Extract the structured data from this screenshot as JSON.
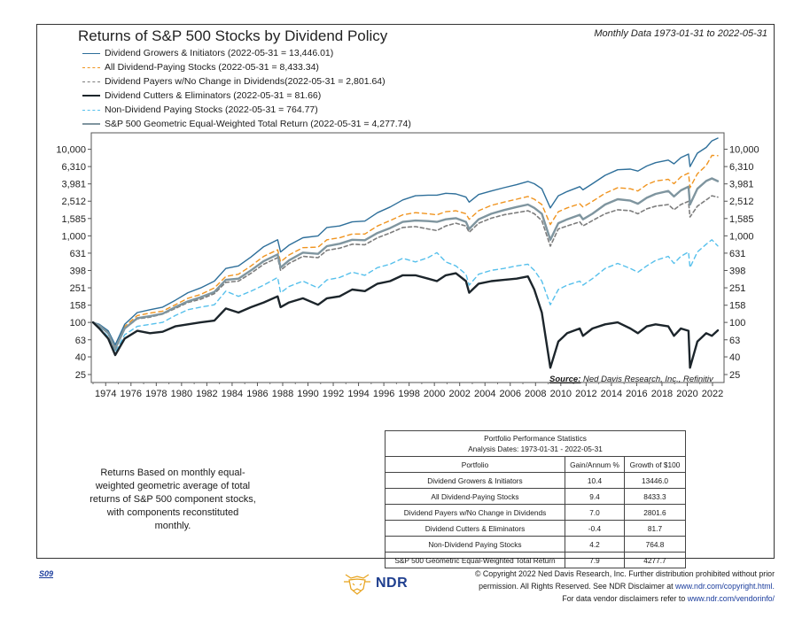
{
  "header": {
    "title": "Returns of S&P 500 Stocks by Dividend Policy",
    "subtitle": "Monthly Data 1973-01-31 to 2022-05-31"
  },
  "chart_data": {
    "type": "line",
    "title": "Returns of S&P 500 Stocks by Dividend Policy",
    "y_scale": "log",
    "ylim": [
      25,
      13446
    ],
    "xlim": [
      1973.0,
      2022.42
    ],
    "y_ticks": [
      10000,
      6310,
      3981,
      2512,
      1585,
      1000,
      631,
      398,
      251,
      158,
      100,
      63,
      40,
      25
    ],
    "y_tick_labels": [
      "10,000",
      "6,310",
      "3,981",
      "2,512",
      "1,585",
      "1,000",
      "631",
      "398",
      "251",
      "158",
      "100",
      "63",
      "40",
      "25"
    ],
    "x_tick_labels": [
      "1974",
      "1976",
      "1978",
      "1980",
      "1982",
      "1984",
      "1986",
      "1988",
      "1990",
      "1992",
      "1994",
      "1996",
      "1998",
      "2000",
      "2002",
      "2004",
      "2006",
      "2008",
      "2010",
      "2012",
      "2014",
      "2016",
      "2018",
      "2020",
      "2022"
    ],
    "legend_placement": "top-left",
    "series": [
      {
        "name": "Dividend Growers & Initiators (2022-05-31 = 13,446.01)",
        "color": "#2e6f9a",
        "dash": "solid",
        "width": 1.4,
        "x": [
          1973.0,
          1973.5,
          1974.2,
          1974.75,
          1975.5,
          1976.5,
          1977.5,
          1978.5,
          1979.5,
          1980.5,
          1981.5,
          1982.6,
          1983.5,
          1984.5,
          1985.5,
          1986.5,
          1987.6,
          1987.83,
          1988.5,
          1989.6,
          1990.8,
          1991.5,
          1992.5,
          1993.5,
          1994.5,
          1995.5,
          1996.5,
          1997.5,
          1998.5,
          1999.5,
          2000.2,
          2000.9,
          2001.7,
          2002.5,
          2002.75,
          2003.5,
          2004.5,
          2005.5,
          2006.5,
          2007.4,
          2007.9,
          2008.5,
          2009.17,
          2009.8,
          2010.5,
          2011.5,
          2011.75,
          2012.5,
          2013.5,
          2014.5,
          2015.5,
          2016.1,
          2016.8,
          2017.5,
          2018.5,
          2018.95,
          2019.5,
          2020.1,
          2020.22,
          2020.8,
          2021.5,
          2021.95,
          2022.42
        ],
        "y": [
          100,
          95,
          80,
          55,
          95,
          130,
          140,
          150,
          180,
          220,
          250,
          300,
          420,
          450,
          570,
          750,
          900,
          650,
          780,
          950,
          1000,
          1250,
          1300,
          1450,
          1480,
          1850,
          2150,
          2600,
          2900,
          2950,
          2950,
          3100,
          3050,
          2800,
          2450,
          3000,
          3300,
          3600,
          3900,
          4250,
          4000,
          3500,
          2100,
          2900,
          3250,
          3700,
          3400,
          4000,
          5000,
          5800,
          5900,
          5600,
          6400,
          7000,
          7500,
          6800,
          8000,
          8800,
          6300,
          9000,
          10500,
          12500,
          13446
        ]
      },
      {
        "name": "All Dividend-Paying Stocks (2022-05-31 = 8,433.34)",
        "color": "#f0941f",
        "dash": "5,4",
        "width": 1.4,
        "x": [
          1973.0,
          1973.5,
          1974.2,
          1974.75,
          1975.5,
          1976.5,
          1977.5,
          1978.5,
          1979.5,
          1980.5,
          1981.5,
          1982.6,
          1983.5,
          1984.5,
          1985.5,
          1986.5,
          1987.6,
          1987.83,
          1988.5,
          1989.6,
          1990.8,
          1991.5,
          1992.5,
          1993.5,
          1994.5,
          1995.5,
          1996.5,
          1997.5,
          1998.5,
          1999.5,
          2000.2,
          2000.9,
          2001.7,
          2002.5,
          2002.75,
          2003.5,
          2004.5,
          2005.5,
          2006.5,
          2007.4,
          2007.9,
          2008.5,
          2009.17,
          2009.8,
          2010.5,
          2011.5,
          2011.75,
          2012.5,
          2013.5,
          2014.5,
          2015.5,
          2016.1,
          2016.8,
          2017.5,
          2018.5,
          2018.95,
          2019.5,
          2020.1,
          2020.22,
          2020.8,
          2021.5,
          2021.95,
          2022.42
        ],
        "y": [
          100,
          93,
          78,
          52,
          90,
          120,
          128,
          135,
          160,
          190,
          210,
          250,
          340,
          360,
          450,
          580,
          690,
          500,
          600,
          730,
          740,
          900,
          950,
          1050,
          1050,
          1300,
          1500,
          1750,
          1850,
          1800,
          1750,
          1900,
          1950,
          1800,
          1550,
          1950,
          2250,
          2450,
          2650,
          2850,
          2650,
          2300,
          1350,
          1900,
          2100,
          2350,
          2150,
          2500,
          3100,
          3600,
          3500,
          3300,
          3900,
          4300,
          4500,
          4000,
          4800,
          5300,
          3600,
          5200,
          6500,
          8500,
          8433
        ]
      },
      {
        "name": "Dividend Payers w/No Change in Dividends(2022-05-31 = 2,801.64)",
        "color": "#7d7d7d",
        "dash": "4,3",
        "width": 1.6,
        "x": [
          1973.0,
          1973.5,
          1974.2,
          1974.75,
          1975.5,
          1976.5,
          1977.5,
          1978.5,
          1979.5,
          1980.5,
          1981.5,
          1982.6,
          1983.5,
          1984.5,
          1985.5,
          1986.5,
          1987.6,
          1987.83,
          1988.5,
          1989.6,
          1990.8,
          1991.5,
          1992.5,
          1993.5,
          1994.5,
          1995.5,
          1996.5,
          1997.5,
          1998.5,
          1999.5,
          2000.2,
          2000.9,
          2001.7,
          2002.5,
          2002.75,
          2003.5,
          2004.5,
          2005.5,
          2006.5,
          2007.4,
          2007.9,
          2008.5,
          2009.17,
          2009.8,
          2010.5,
          2011.5,
          2011.75,
          2012.5,
          2013.5,
          2014.5,
          2015.5,
          2016.1,
          2016.8,
          2017.5,
          2018.5,
          2018.95,
          2019.5,
          2020.1,
          2020.22,
          2020.8,
          2021.5,
          2021.95,
          2022.42
        ],
        "y": [
          100,
          92,
          75,
          48,
          85,
          110,
          115,
          125,
          145,
          170,
          185,
          215,
          290,
          300,
          370,
          470,
          560,
          400,
          480,
          580,
          560,
          680,
          720,
          800,
          790,
          950,
          1080,
          1250,
          1280,
          1200,
          1150,
          1300,
          1400,
          1300,
          1100,
          1400,
          1600,
          1750,
          1850,
          1950,
          1800,
          1500,
          760,
          1200,
          1300,
          1450,
          1300,
          1500,
          1800,
          2000,
          1950,
          1800,
          2050,
          2200,
          2300,
          2000,
          2300,
          2500,
          1650,
          2200,
          2600,
          2900,
          2801
        ]
      },
      {
        "name": "Dividend Cutters & Eliminators (2022-05-31 = 81.66)",
        "color": "#1c252b",
        "dash": "solid",
        "width": 2.4,
        "x": [
          1973.0,
          1973.5,
          1974.2,
          1974.75,
          1975.5,
          1976.5,
          1977.5,
          1978.5,
          1979.5,
          1980.5,
          1981.5,
          1982.6,
          1983.5,
          1984.5,
          1985.5,
          1986.5,
          1987.6,
          1987.83,
          1988.5,
          1989.6,
          1990.8,
          1991.5,
          1992.5,
          1993.5,
          1994.5,
          1995.5,
          1996.5,
          1997.5,
          1998.5,
          1999.5,
          2000.2,
          2000.9,
          2001.7,
          2002.5,
          2002.75,
          2003.5,
          2004.5,
          2005.5,
          2006.5,
          2007.4,
          2007.9,
          2008.5,
          2009.17,
          2009.8,
          2010.5,
          2011.5,
          2011.75,
          2012.5,
          2013.5,
          2014.5,
          2015.5,
          2016.1,
          2016.8,
          2017.5,
          2018.5,
          2018.95,
          2019.5,
          2020.1,
          2020.22,
          2020.8,
          2021.5,
          2021.95,
          2022.42
        ],
        "y": [
          100,
          85,
          65,
          42,
          65,
          80,
          75,
          78,
          90,
          95,
          100,
          105,
          145,
          130,
          150,
          170,
          200,
          150,
          170,
          190,
          160,
          190,
          200,
          240,
          230,
          280,
          300,
          350,
          350,
          320,
          300,
          350,
          370,
          300,
          220,
          280,
          300,
          310,
          320,
          340,
          240,
          130,
          30,
          60,
          75,
          85,
          70,
          85,
          95,
          100,
          85,
          75,
          90,
          95,
          90,
          70,
          85,
          80,
          30,
          60,
          75,
          70,
          81
        ]
      },
      {
        "name": "Non-Dividend Paying Stocks (2022-05-31 = 764.77)",
        "color": "#56c0ec",
        "dash": "5,4",
        "width": 1.4,
        "x": [
          1973.0,
          1973.5,
          1974.2,
          1974.75,
          1975.5,
          1976.5,
          1977.5,
          1978.5,
          1979.5,
          1980.5,
          1981.5,
          1982.6,
          1983.5,
          1984.5,
          1985.5,
          1986.5,
          1987.6,
          1987.83,
          1988.5,
          1989.6,
          1990.8,
          1991.5,
          1992.5,
          1993.5,
          1994.5,
          1995.5,
          1996.5,
          1997.5,
          1998.5,
          1999.5,
          2000.2,
          2000.9,
          2001.7,
          2002.5,
          2002.75,
          2003.5,
          2004.5,
          2005.5,
          2006.5,
          2007.4,
          2007.9,
          2008.5,
          2009.17,
          2009.8,
          2010.5,
          2011.5,
          2011.75,
          2012.5,
          2013.5,
          2014.5,
          2015.5,
          2016.1,
          2016.8,
          2017.5,
          2018.5,
          2018.95,
          2019.5,
          2020.1,
          2020.22,
          2020.8,
          2021.5,
          2021.95,
          2022.42
        ],
        "y": [
          100,
          88,
          68,
          45,
          72,
          90,
          95,
          100,
          120,
          140,
          150,
          160,
          230,
          200,
          230,
          270,
          330,
          220,
          260,
          300,
          250,
          310,
          330,
          380,
          350,
          430,
          470,
          550,
          500,
          560,
          640,
          500,
          450,
          360,
          270,
          360,
          400,
          420,
          450,
          470,
          400,
          300,
          160,
          240,
          270,
          300,
          270,
          320,
          420,
          480,
          420,
          380,
          450,
          520,
          580,
          480,
          580,
          650,
          430,
          650,
          800,
          900,
          764
        ]
      },
      {
        "name": "S&P 500 Geometric Equal-Weighted Total Return (2022-05-31 = 4,277.74)",
        "color": "#7f959f",
        "dash": "solid",
        "width": 2.4,
        "x": [
          1973.0,
          1973.5,
          1974.2,
          1974.75,
          1975.5,
          1976.5,
          1977.5,
          1978.5,
          1979.5,
          1980.5,
          1981.5,
          1982.6,
          1983.5,
          1984.5,
          1985.5,
          1986.5,
          1987.6,
          1987.83,
          1988.5,
          1989.6,
          1990.8,
          1991.5,
          1992.5,
          1993.5,
          1994.5,
          1995.5,
          1996.5,
          1997.5,
          1998.5,
          1999.5,
          2000.2,
          2000.9,
          2001.7,
          2002.5,
          2002.75,
          2003.5,
          2004.5,
          2005.5,
          2006.5,
          2007.4,
          2007.9,
          2008.5,
          2009.17,
          2009.8,
          2010.5,
          2011.5,
          2011.75,
          2012.5,
          2013.5,
          2014.5,
          2015.5,
          2016.1,
          2016.8,
          2017.5,
          2018.5,
          2018.95,
          2019.5,
          2020.1,
          2020.22,
          2020.8,
          2021.5,
          2021.95,
          2022.42
        ],
        "y": [
          100,
          92,
          75,
          50,
          85,
          112,
          118,
          126,
          150,
          175,
          195,
          225,
          310,
          320,
          400,
          510,
          610,
          430,
          520,
          640,
          620,
          760,
          810,
          900,
          890,
          1080,
          1230,
          1450,
          1500,
          1480,
          1450,
          1550,
          1600,
          1450,
          1200,
          1550,
          1800,
          1980,
          2150,
          2300,
          2100,
          1800,
          900,
          1400,
          1550,
          1750,
          1550,
          1800,
          2300,
          2650,
          2550,
          2350,
          2750,
          3050,
          3300,
          2850,
          3350,
          3700,
          2300,
          3500,
          4300,
          4600,
          4277
        ]
      }
    ]
  },
  "source": {
    "label": "Source:",
    "text": "Ned Davis Research, Inc., Refinitiv"
  },
  "note": "Returns Based on monthly equal-weighted geometric average of total returns of S&P 500 component stocks, with components reconstituted monthly.",
  "stats_table": {
    "caption_line1": "Portfolio Performance Statistics",
    "caption_line2": "Analysis Dates: 1973-01-31 - 2022-05-31",
    "headers": [
      "Portfolio",
      "Gain/Annum %",
      "Growth of $100"
    ],
    "rows": [
      [
        "Dividend Growers & Initiators",
        "10.4",
        "13446.0"
      ],
      [
        "All Dividend-Paying Stocks",
        "9.4",
        "8433.3"
      ],
      [
        "Dividend Payers w/No Change in Dividends",
        "7.0",
        "2801.6"
      ],
      [
        "Dividend Cutters & Eliminators",
        "-0.4",
        "81.7"
      ],
      [
        "Non-Dividend Paying Stocks",
        "4.2",
        "764.8"
      ],
      [
        "S&P 500 Geometric Equal-Weighted Total Return",
        "7.9",
        "4277.7"
      ]
    ]
  },
  "footer": {
    "code": "S09",
    "logo_text": "NDR",
    "copyright_line1": "© Copyright 2022 Ned Davis Research, Inc. Further distribution prohibited without prior",
    "copyright_line2_pre": "permission. All Rights Reserved. See NDR Disclaimer at",
    "copyright_line2_link": "www.ndr.com/copyright.html.",
    "copyright_line3_pre": "For data vendor disclaimers refer to",
    "copyright_line3_link": "www.ndr.com/vendorinfo/"
  },
  "colors": {
    "frame": "#333333",
    "link": "#1a3c9c",
    "logo": "#1f3f8f",
    "logo_accent": "#e8a31c"
  }
}
